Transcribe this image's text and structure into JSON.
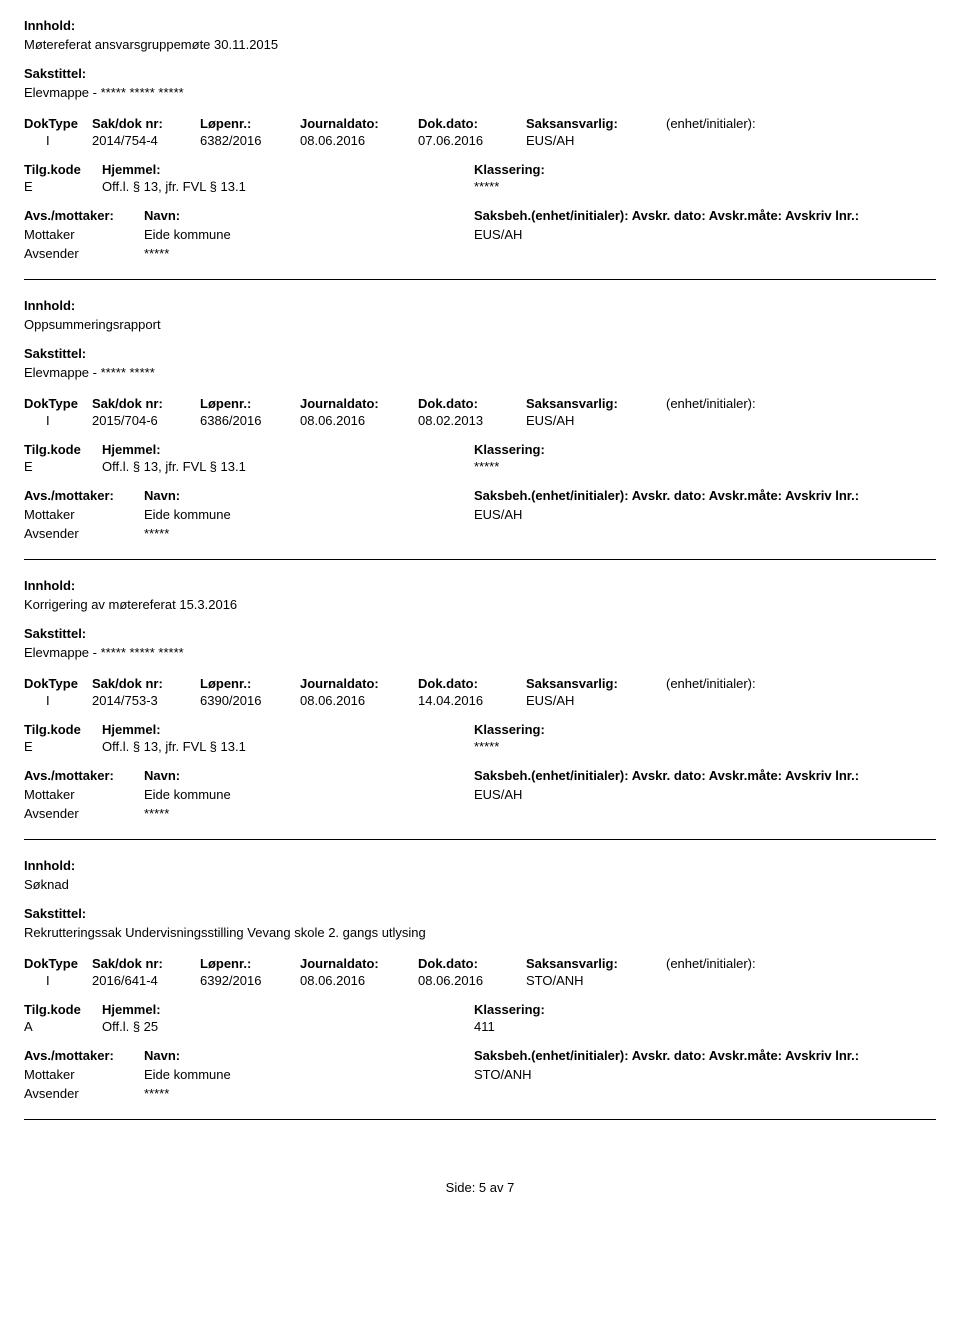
{
  "labels": {
    "innhold": "Innhold:",
    "sakstittel": "Sakstittel:",
    "doktype": "DokType",
    "sakdok": "Sak/dok nr:",
    "lopenr": "Løpenr.:",
    "journaldato": "Journaldato:",
    "dokdato": "Dok.dato:",
    "saksansvarlig": "Saksansvarlig:",
    "enhet": "(enhet/initialer):",
    "tilgkode": "Tilg.kode",
    "hjemmel": "Hjemmel:",
    "klassering": "Klassering:",
    "avsmottaker": "Avs./mottaker:",
    "navn": "Navn:",
    "saksbeh_line": "Saksbeh.(enhet/initialer): Avskr. dato:  Avskr.måte: Avskriv lnr.:",
    "mottaker": "Mottaker",
    "avsender": "Avsender"
  },
  "entries": [
    {
      "innhold": "Møtereferat ansvarsgruppemøte 30.11.2015",
      "sakstittel": "Elevmappe - ***** ***** *****",
      "doktype": "I",
      "sakdok": "2014/754-4",
      "lopenr": "6382/2016",
      "journaldato": "08.06.2016",
      "dokdato": "07.06.2016",
      "saksansvarlig": "EUS/AH",
      "tilgkode": "E",
      "hjemmel": "Off.l. § 13, jfr. FVL § 13.1",
      "klassering": "*****",
      "mottaker_name": "Eide kommune",
      "mottaker_beh": "EUS/AH",
      "avsender_name": "*****"
    },
    {
      "innhold": "Oppsummeringsrapport",
      "sakstittel": "Elevmappe - ***** *****",
      "doktype": "I",
      "sakdok": "2015/704-6",
      "lopenr": "6386/2016",
      "journaldato": "08.06.2016",
      "dokdato": "08.02.2013",
      "saksansvarlig": "EUS/AH",
      "tilgkode": "E",
      "hjemmel": "Off.l. § 13, jfr. FVL § 13.1",
      "klassering": "*****",
      "mottaker_name": "Eide kommune",
      "mottaker_beh": "EUS/AH",
      "avsender_name": "*****"
    },
    {
      "innhold": "Korrigering av møtereferat 15.3.2016",
      "sakstittel": "Elevmappe - ***** ***** *****",
      "doktype": "I",
      "sakdok": "2014/753-3",
      "lopenr": "6390/2016",
      "journaldato": "08.06.2016",
      "dokdato": "14.04.2016",
      "saksansvarlig": "EUS/AH",
      "tilgkode": "E",
      "hjemmel": "Off.l. § 13, jfr. FVL § 13.1",
      "klassering": "*****",
      "mottaker_name": "Eide kommune",
      "mottaker_beh": "EUS/AH",
      "avsender_name": "*****"
    },
    {
      "innhold": "Søknad",
      "sakstittel": "Rekrutteringssak Undervisningsstilling Vevang skole 2. gangs utlysing",
      "doktype": "I",
      "sakdok": "2016/641-4",
      "lopenr": "6392/2016",
      "journaldato": "08.06.2016",
      "dokdato": "08.06.2016",
      "saksansvarlig": "STO/ANH",
      "tilgkode": "A",
      "hjemmel": "Off.l. § 25",
      "klassering": "411",
      "mottaker_name": "Eide kommune",
      "mottaker_beh": "STO/ANH",
      "avsender_name": "*****"
    }
  ],
  "footer": "Side: 5 av 7"
}
